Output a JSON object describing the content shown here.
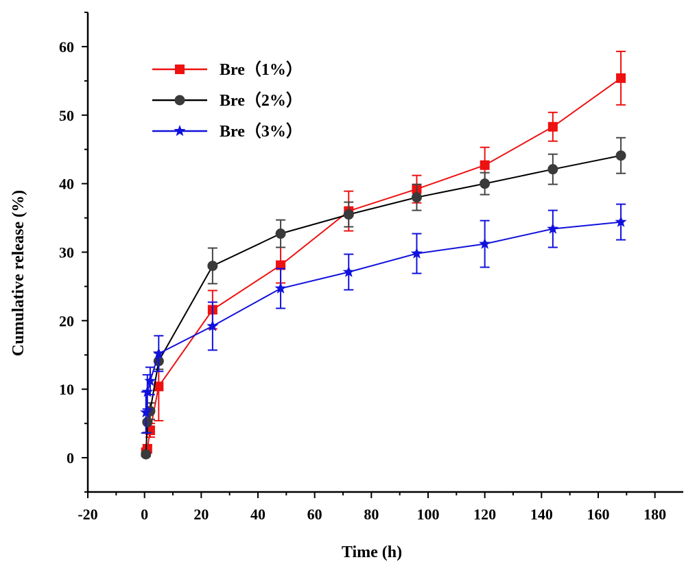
{
  "chart_data": {
    "type": "line",
    "title": "",
    "xlabel": "Time (h)",
    "ylabel": "Cumulative release (%)",
    "xlim": [
      -20,
      190
    ],
    "ylim": [
      -5,
      65
    ],
    "xticks": [
      -20,
      0,
      20,
      40,
      60,
      80,
      100,
      120,
      140,
      160,
      180
    ],
    "yticks": [
      0,
      10,
      20,
      30,
      40,
      50,
      60
    ],
    "grid": false,
    "legend_position": "top-left",
    "series": [
      {
        "name": "Bre（1%）",
        "color": "#ee1111",
        "marker": "square",
        "x": [
          0.5,
          1,
          2,
          5,
          24,
          48,
          72,
          96,
          120,
          144,
          168
        ],
        "y": [
          0.8,
          1.3,
          4.0,
          10.4,
          21.6,
          28.1,
          36.0,
          39.2,
          42.7,
          48.3,
          55.4
        ],
        "err": [
          0.4,
          0.6,
          1.0,
          5.0,
          2.8,
          2.6,
          2.9,
          2.0,
          2.6,
          2.1,
          3.9
        ]
      },
      {
        "name": "Bre（2%）",
        "color": "#000000",
        "marker": "circle",
        "x": [
          0.5,
          1,
          2,
          5,
          24,
          48,
          72,
          96,
          120,
          144,
          168
        ],
        "y": [
          0.5,
          5.2,
          6.8,
          14.1,
          28.0,
          32.7,
          35.5,
          38.0,
          40.0,
          42.1,
          44.1
        ],
        "err": [
          0.3,
          1.5,
          1.2,
          1.2,
          2.6,
          2.0,
          1.8,
          1.9,
          1.6,
          2.2,
          2.6
        ]
      },
      {
        "name": "Bre（3%）",
        "color": "#1111dd",
        "marker": "star",
        "x": [
          0.5,
          1,
          2,
          5,
          24,
          48,
          72,
          96,
          120,
          144,
          168
        ],
        "y": [
          6.6,
          9.6,
          11.2,
          15.2,
          19.2,
          24.7,
          27.1,
          29.8,
          31.2,
          33.4,
          34.4
        ],
        "err": [
          3.0,
          2.5,
          2.0,
          2.6,
          3.5,
          2.9,
          2.6,
          2.9,
          3.4,
          2.7,
          2.6
        ]
      }
    ]
  }
}
